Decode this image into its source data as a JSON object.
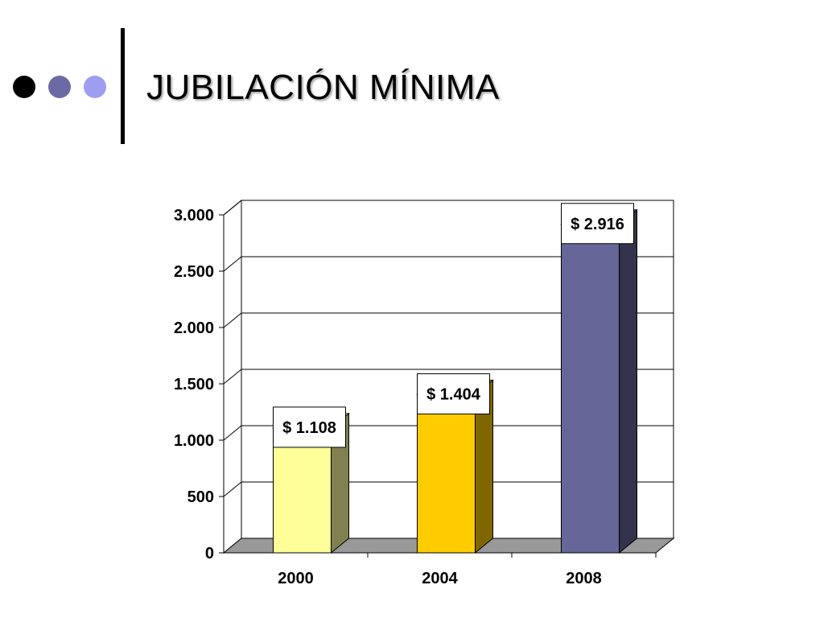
{
  "slide": {
    "title": "JUBILACIÓN MÍNIMA",
    "bullet_colors": [
      "#000000",
      "#6b6aa5",
      "#9d9df2"
    ]
  },
  "chart_data": {
    "type": "bar",
    "style": "3d-clustered-column",
    "title": "",
    "xlabel": "",
    "ylabel": "",
    "categories": [
      "2000",
      "2004",
      "2008"
    ],
    "values": [
      1108,
      1404,
      2916
    ],
    "data_labels": [
      "$ 1.108",
      "$ 1.404",
      "$ 2.916"
    ],
    "ylim": [
      0,
      3000
    ],
    "y_ticks": [
      0,
      500,
      1000,
      1500,
      2000,
      2500,
      3000
    ],
    "y_tick_labels": [
      "0",
      "500",
      "1.000",
      "1.500",
      "2.000",
      "2.500",
      "3.000"
    ],
    "grid": true,
    "bar_colors": [
      "#ffff99",
      "#ffcc00",
      "#666699"
    ],
    "bar_side_colors": [
      "#808050",
      "#806600",
      "#33334d"
    ],
    "wall_color": "#ffffff",
    "floor_color": "#999999"
  }
}
